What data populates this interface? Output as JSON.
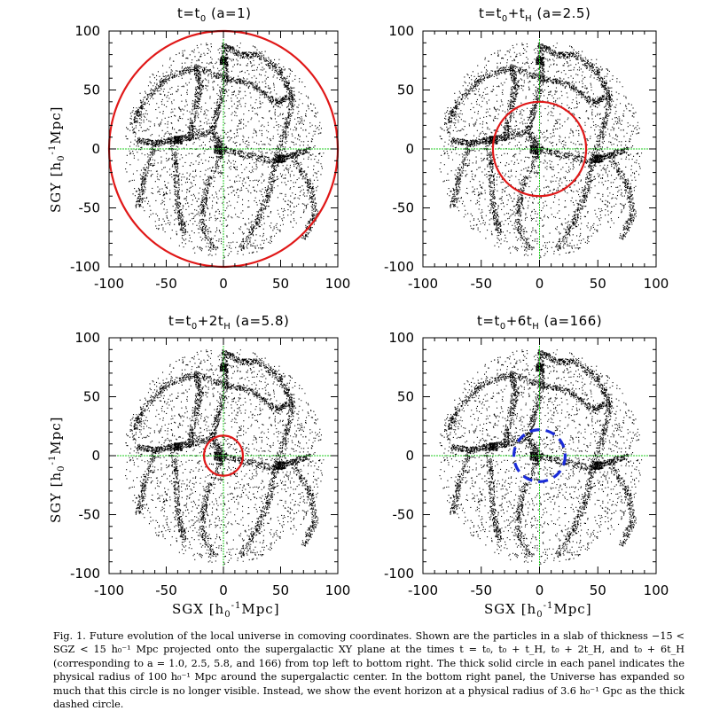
{
  "figure": {
    "panels": [
      {
        "id": "top-left",
        "title_main": "t=t",
        "title_sub": "0",
        "title_rest": " (a=1)",
        "circle": {
          "radius_mpc": 100,
          "style": "solid",
          "color": "#e01818"
        }
      },
      {
        "id": "top-right",
        "title_main": "t=t",
        "title_sub": "0",
        "title_rest": "+t",
        "title_sub2": "H",
        "title_rest2": " (a=2.5)",
        "circle": {
          "radius_mpc": 40,
          "style": "solid",
          "color": "#e01818"
        }
      },
      {
        "id": "bottom-left",
        "title_main": "t=t",
        "title_sub": "0",
        "title_rest": "+2t",
        "title_sub2": "H",
        "title_rest2": " (a=5.8)",
        "circle": {
          "radius_mpc": 17,
          "style": "solid",
          "color": "#e01818"
        }
      },
      {
        "id": "bottom-right",
        "title_main": "t=t",
        "title_sub": "0",
        "title_rest": "+6t",
        "title_sub2": "H",
        "title_rest2": " (a=166)",
        "circle": {
          "radius_mpc": 22,
          "style": "dashed",
          "color": "#1a2bd8"
        }
      }
    ],
    "axes": {
      "xlim": [
        -100,
        100
      ],
      "ylim": [
        -100,
        100
      ],
      "ticks": [
        "-100",
        "-50",
        "0",
        "50",
        "100"
      ],
      "x_label_pre": "SGX  [h",
      "x_label_sub": "0",
      "x_label_sup": "-1",
      "x_label_post": "Mpc]",
      "y_label_pre": "SGY  [h",
      "y_label_sub": "0",
      "y_label_sup": "-1",
      "y_label_post": "Mpc]",
      "crosshair_color": "#22cc22"
    }
  },
  "caption": {
    "text": "Fig. 1. Future evolution of the local universe in comoving coordinates. Shown are the particles in a slab of thickness −15 < SGZ < 15 h₀⁻¹ Mpc projected onto the supergalactic XY plane at the times t = t₀, t₀ + t_H, t₀ + 2t_H, and t₀ + 6t_H (corresponding to a = 1.0, 2.5, 5.8, and 166) from top left to bottom right. The thick solid circle in each panel indicates the physical radius of 100 h₀⁻¹ Mpc around the supergalactic center. In the bottom right panel, the Universe has expanded so much that this circle is no longer visible. Instead, we show the event horizon at a physical radius of 3.6 h₀⁻¹ Gpc as the thick dashed circle."
  }
}
